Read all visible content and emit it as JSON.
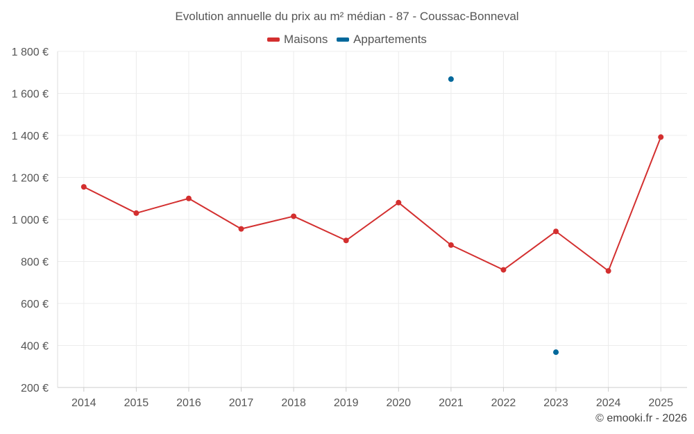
{
  "chart_data": {
    "type": "line",
    "title": "Evolution annuelle du prix au m² médian - 87 - Coussac-Bonneval",
    "xlabel": "",
    "ylabel": "",
    "categories": [
      "2014",
      "2015",
      "2016",
      "2017",
      "2018",
      "2019",
      "2020",
      "2021",
      "2022",
      "2023",
      "2024",
      "2025"
    ],
    "series": [
      {
        "name": "Maisons",
        "color": "#d32f2f",
        "style": "line",
        "values": [
          1155,
          1030,
          1100,
          955,
          1015,
          900,
          1080,
          878,
          760,
          943,
          755,
          1392
        ]
      },
      {
        "name": "Appartements",
        "color": "#01689b",
        "style": "points",
        "values": [
          null,
          null,
          null,
          null,
          null,
          null,
          null,
          1668,
          null,
          368,
          null,
          null
        ]
      }
    ],
    "ylim": [
      200,
      1800
    ],
    "yticks": [
      200,
      400,
      600,
      800,
      1000,
      1200,
      1400,
      1600,
      1800
    ],
    "ytick_labels": [
      "200 €",
      "400 €",
      "600 €",
      "800 €",
      "1 000 €",
      "1 200 €",
      "1 400 €",
      "1 600 €",
      "1 800 €"
    ],
    "grid": true,
    "legend_position": "top-center"
  },
  "credit": "© emooki.fr - 2026"
}
